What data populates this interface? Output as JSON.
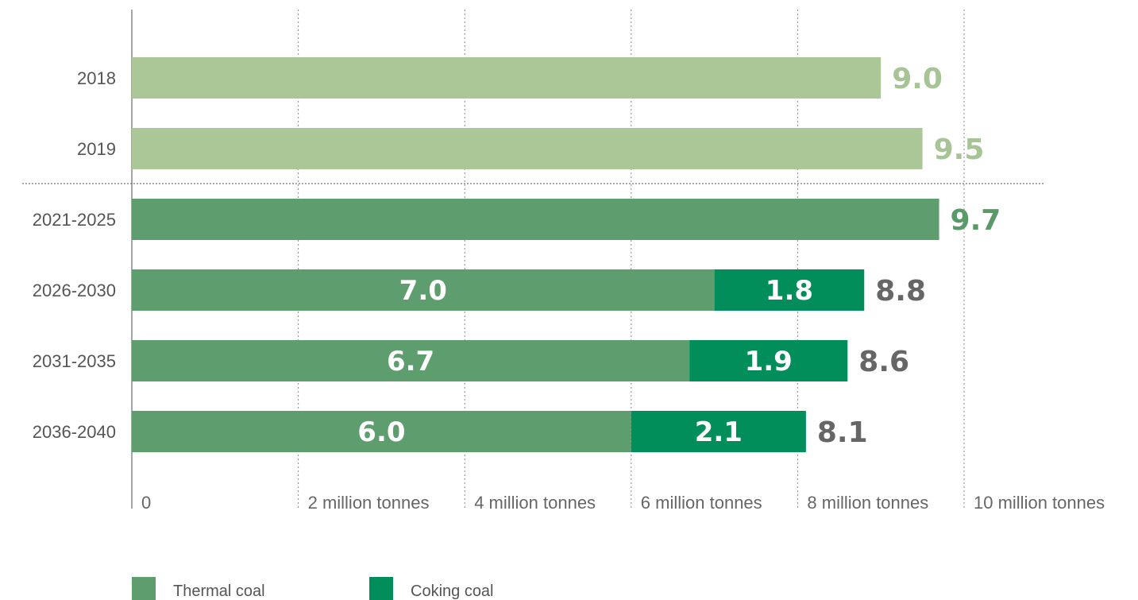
{
  "chart_data": {
    "type": "bar",
    "orientation": "horizontal",
    "stacked": true,
    "categories": [
      "2018",
      "2019",
      "2021-2025",
      "2026-2030",
      "2031-2035",
      "2036-2040"
    ],
    "series": [
      {
        "name": "Thermal coal",
        "values": [
          9.0,
          9.5,
          9.7,
          7.0,
          6.7,
          6.0
        ]
      },
      {
        "name": "Coking coal",
        "values": [
          0,
          0,
          0,
          1.8,
          1.9,
          2.1
        ]
      }
    ],
    "totals": [
      9.0,
      9.5,
      9.7,
      8.8,
      8.6,
      8.1
    ],
    "total_labels": [
      "9.0",
      "9.5",
      "9.7",
      "8.8",
      "8.6",
      "8.1"
    ],
    "segment_labels": {
      "Thermal coal": [
        "",
        "",
        "",
        "7.0",
        "6.7",
        "6.0"
      ],
      "Coking coal": [
        "",
        "",
        "",
        "1.8",
        "1.9",
        "2.1"
      ]
    },
    "x_ticks": [
      0,
      2,
      4,
      6,
      8,
      10
    ],
    "x_tick_labels": [
      "0",
      "2 million tonnes",
      "4 million tonnes",
      "6 million tonnes",
      "8 million tonnes",
      "10 million tonnes"
    ],
    "xlim": [
      0,
      10
    ],
    "grid": "dotted-vertical",
    "legend": {
      "placement": "bottom-left",
      "items": [
        "Thermal coal",
        "Coking coal"
      ]
    },
    "colors": {
      "historical": "#abc797",
      "historical_label": "#a6c495",
      "thermal": "#5e9d6d",
      "thermal_label": "#5a9968",
      "coking": "#028e5a",
      "total_label": "#666666"
    }
  }
}
